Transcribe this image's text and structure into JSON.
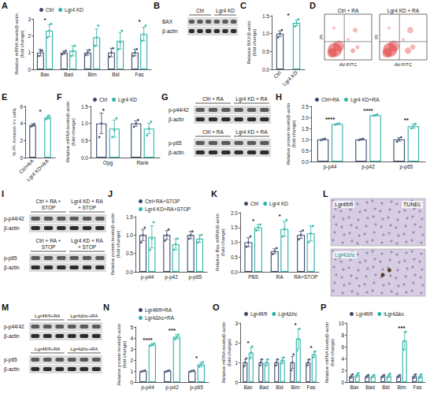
{
  "chart_data": [
    {
      "panel": "A",
      "type": "bar",
      "categories": [
        "Bax",
        "Bad",
        "Bim",
        "Bid",
        "Fas"
      ],
      "ylabel": "Relative mRNA levels/β-actin\n(fold change)",
      "ylim": [
        0,
        3
      ],
      "yticks": [
        0,
        1,
        2,
        3
      ],
      "grid": false,
      "legend": "top-left",
      "series": [
        {
          "name": "Ctrl",
          "color": "#3b4a6b",
          "values": [
            1.0,
            1.0,
            1.0,
            1.0,
            1.0
          ],
          "errors": [
            0.2,
            0.1,
            0.15,
            0.25,
            0.2
          ],
          "points": [
            [
              0.8,
              1.1,
              1.1
            ],
            [
              0.9,
              1.0,
              1.1
            ],
            [
              0.85,
              1.0,
              1.15
            ],
            [
              0.75,
              1.0,
              1.25
            ],
            [
              0.8,
              1.0,
              1.2
            ]
          ]
        },
        {
          "name": "Lgr4 KD",
          "color": "#2bb3a5",
          "values": [
            2.3,
            1.1,
            1.9,
            1.7,
            2.1
          ],
          "errors": [
            0.35,
            0.3,
            0.5,
            0.5,
            0.4
          ],
          "points": [
            [
              1.9,
              2.3,
              2.7
            ],
            [
              0.8,
              1.1,
              1.4
            ],
            [
              1.4,
              1.9,
              2.6
            ],
            [
              1.2,
              1.6,
              2.3
            ],
            [
              1.7,
              2.1,
              2.6
            ]
          ]
        }
      ],
      "annotations": [
        {
          "category": "Bax",
          "text": "*"
        },
        {
          "category": "Fas",
          "text": "*"
        }
      ]
    },
    {
      "panel": "C",
      "type": "bar",
      "categories": [
        "Ctrl",
        "Lgr4 KD"
      ],
      "ylabel": "Relative BAX/β-actin\n(fold change)",
      "ylim": [
        0,
        1.5
      ],
      "yticks": [
        {
          "value": 0,
          "label": "0.0"
        },
        0.5,
        {
          "value": 1,
          "label": "1.0"
        },
        1.5
      ],
      "grid": false,
      "values": [
        1.0,
        1.3
      ],
      "errors": [
        0.08,
        0.08
      ],
      "points": [
        [
          0.9,
          1.0,
          1.1
        ],
        [
          1.2,
          1.3,
          1.4
        ]
      ],
      "colors": [
        "#3b4a6b",
        "#2bb3a5"
      ],
      "annotations": [
        {
          "text": "*"
        }
      ]
    },
    {
      "panel": "E",
      "type": "bar",
      "categories": [
        "Ctrl+RA",
        "Lgr4 KD+RA"
      ],
      "ylabel": "% PI- Annexin V+ cells",
      "ylim": [
        0,
        6
      ],
      "yticks": [
        0,
        2,
        4,
        6
      ],
      "grid": false,
      "values": [
        3.8,
        4.7
      ],
      "errors": [
        0.15,
        0.2
      ],
      "points": [
        [
          3.65,
          3.8,
          3.95
        ],
        [
          4.5,
          4.7,
          4.9
        ]
      ],
      "colors": [
        "#3b4a6b",
        "#2bb3a5"
      ],
      "annotations": [
        {
          "text": "*"
        }
      ]
    },
    {
      "panel": "F",
      "type": "bar",
      "categories": [
        "Opg",
        "Rank"
      ],
      "ylabel": "Relative mRNA levels/β-actin\n(fold change)",
      "ylim": [
        0,
        1.5
      ],
      "yticks": [
        {
          "value": 0,
          "label": "0.0"
        },
        0.5,
        {
          "value": 1,
          "label": "1.0"
        },
        1.5
      ],
      "grid": false,
      "legend": "top-left",
      "series": [
        {
          "name": "Ctrl",
          "color": "#3b4a6b",
          "values": [
            1.0,
            1.0
          ],
          "errors": [
            0.3,
            0.08
          ],
          "points": [
            [
              0.6,
              1.0,
              1.4
            ],
            [
              0.9,
              1.0,
              1.1
            ]
          ]
        },
        {
          "name": "Lgr4 KD",
          "color": "#2bb3a5",
          "values": [
            0.85,
            0.85
          ],
          "errors": [
            0.25,
            0.15
          ],
          "points": [
            [
              0.6,
              0.8,
              1.15
            ],
            [
              0.65,
              0.85,
              1.05
            ]
          ]
        }
      ],
      "annotations": []
    },
    {
      "panel": "H",
      "type": "bar",
      "categories": [
        "p-p44",
        "p-p42",
        "p-p65"
      ],
      "ylabel": "Relative protein levels/β-actin\n(fold change)",
      "ylim": [
        0,
        2.5
      ],
      "yticks": [
        {
          "value": 0,
          "label": "0.0"
        },
        0.5,
        {
          "value": 1,
          "label": "1.0"
        },
        1.5,
        {
          "value": 2,
          "label": "2.0"
        },
        2.5
      ],
      "grid": false,
      "legend": "top-left",
      "series": [
        {
          "name": "Ctrl+RA",
          "color": "#3b4a6b",
          "values": [
            1.0,
            1.0,
            1.0
          ],
          "errors": [
            0.03,
            0.03,
            0.08
          ],
          "points": [
            [
              0.97,
              1.0,
              1.03
            ],
            [
              0.97,
              1.0,
              1.03
            ],
            [
              0.9,
              1.0,
              1.1
            ]
          ]
        },
        {
          "name": "Lgr4 KD+RA",
          "color": "#2bb3a5",
          "values": [
            1.7,
            2.1,
            1.6
          ],
          "errors": [
            0.03,
            0.03,
            0.1
          ],
          "points": [
            [
              1.67,
              1.7,
              1.73
            ],
            [
              2.07,
              2.1,
              2.13
            ],
            [
              1.5,
              1.6,
              1.7
            ]
          ]
        }
      ],
      "annotations": [
        {
          "category": "p-p44",
          "text": "****"
        },
        {
          "category": "p-p42",
          "text": "****"
        },
        {
          "category": "p-p65",
          "text": "**"
        }
      ]
    },
    {
      "panel": "J",
      "type": "bar",
      "categories": [
        "p-p44",
        "p-p42",
        "p-p65"
      ],
      "ylabel": "Relative protein levels/β-actin\n(fold change)",
      "ylim": [
        0,
        1.5
      ],
      "yticks": [
        {
          "value": 0,
          "label": "0.0"
        },
        0.5,
        {
          "value": 1,
          "label": "1.0"
        },
        1.5
      ],
      "grid": false,
      "legend": "top-left",
      "series": [
        {
          "name": "Ctrl+RA+STOP",
          "color": "#3b4a6b",
          "values": [
            1.0,
            1.0,
            1.0
          ],
          "errors": [
            0.15,
            0.12,
            0.1
          ],
          "points": [
            [
              0.8,
              1.0,
              1.2
            ],
            [
              0.85,
              1.0,
              1.15
            ],
            [
              0.9,
              1.0,
              1.1
            ]
          ]
        },
        {
          "name": "Lgr4 KD+RA+STOP",
          "color": "#2bb3a5",
          "values": [
            0.95,
            0.75,
            0.9
          ],
          "errors": [
            0.3,
            0.15,
            0.1
          ],
          "points": [
            [
              0.6,
              0.9,
              1.35
            ],
            [
              0.6,
              0.75,
              0.9
            ],
            [
              0.8,
              0.9,
              1.0
            ]
          ]
        }
      ],
      "annotations": []
    },
    {
      "panel": "K",
      "type": "bar",
      "categories": [
        "PBS",
        "RA",
        "RA+STOP"
      ],
      "ylabel": "Relative Bax mRNA/β-actin\n(fold change)",
      "ylim": [
        0,
        2
      ],
      "yticks": [
        {
          "value": 0,
          "label": "0.0"
        },
        0.5,
        {
          "value": 1,
          "label": "1.0"
        },
        1.5,
        {
          "value": 2,
          "label": "2.0"
        }
      ],
      "grid": false,
      "legend": "top-left",
      "series": [
        {
          "name": "Ctrl",
          "color": "#3b4a6b",
          "values": [
            1.0,
            0.7,
            1.25
          ],
          "errors": [
            0.15,
            0.08,
            0.12
          ],
          "points": [
            [
              0.85,
              1.0,
              1.2
            ],
            [
              0.6,
              0.7,
              0.8
            ],
            [
              1.1,
              1.25,
              1.4
            ]
          ]
        },
        {
          "name": "Lgr4 KD",
          "color": "#2bb3a5",
          "values": [
            1.5,
            1.45,
            1.3
          ],
          "errors": [
            0.1,
            0.25,
            0.25
          ],
          "points": [
            [
              1.4,
              1.5,
              1.6
            ],
            [
              1.2,
              1.45,
              1.75
            ],
            [
              1.0,
              1.3,
              1.55
            ]
          ]
        }
      ],
      "annotations": [
        {
          "category": "PBS",
          "text": "*"
        },
        {
          "category": "RA",
          "text": "*"
        }
      ]
    },
    {
      "panel": "N",
      "type": "bar",
      "categories": [
        "p-p44",
        "p-p42",
        "p-p65"
      ],
      "ylabel": "Relative protein levels/β-actin\n(fold change)",
      "ylim": [
        0,
        5
      ],
      "yticks": [
        0,
        1,
        2,
        3,
        4,
        5
      ],
      "grid": false,
      "legend": "top-left",
      "series": [
        {
          "name": "Lgr4fl/fl+RA",
          "color": "#3b4a6b",
          "values": [
            1.0,
            1.0,
            1.0
          ],
          "errors": [
            0.05,
            0.05,
            0.05
          ],
          "points": [
            [
              0.95,
              1.0,
              1.05
            ],
            [
              0.95,
              1.0,
              1.05
            ],
            [
              0.95,
              1.0,
              1.05
            ]
          ]
        },
        {
          "name": "Lgr4Δhc+RA",
          "color": "#2bb3a5",
          "values": [
            3.4,
            4.1,
            1.6
          ],
          "errors": [
            0.1,
            0.2,
            0.2
          ],
          "points": [
            [
              3.3,
              3.4,
              3.5
            ],
            [
              3.9,
              4.1,
              4.3
            ],
            [
              1.4,
              1.6,
              1.8
            ]
          ]
        }
      ],
      "annotations": [
        {
          "category": "p-p44",
          "text": "****"
        },
        {
          "category": "p-p42",
          "text": "***"
        },
        {
          "category": "p-p65",
          "text": "*"
        }
      ]
    },
    {
      "panel": "O",
      "type": "bar",
      "categories": [
        "Bax",
        "Bad",
        "Bid",
        "Bim",
        "Fas"
      ],
      "ylabel": "Relative mRNA levels/β-actin\n(fold change)",
      "ylim": [
        0,
        3
      ],
      "yticks": [
        0,
        1,
        2,
        3
      ],
      "grid": false,
      "legend": "top-left",
      "series": [
        {
          "name": "Lgr4fl/fl",
          "color": "#3b4a6b",
          "values": [
            1.0,
            1.0,
            1.0,
            1.0,
            1.0
          ],
          "errors": [
            0.15,
            0.15,
            0.15,
            0.3,
            0.15
          ],
          "points": [
            [
              0.8,
              1.0,
              1.2
            ],
            [
              0.85,
              1.0,
              1.15
            ],
            [
              0.85,
              1.0,
              1.15
            ],
            [
              0.6,
              1.0,
              1.4
            ],
            [
              0.85,
              1.0,
              1.15
            ]
          ]
        },
        {
          "name": "Lgr4Δhc",
          "color": "#2bb3a5",
          "values": [
            1.5,
            1.0,
            1.1,
            2.2,
            1.4
          ],
          "errors": [
            0.25,
            0.15,
            0.15,
            0.5,
            0.15
          ],
          "points": [
            [
              1.2,
              1.5,
              1.8
            ],
            [
              0.85,
              1.0,
              1.15
            ],
            [
              0.95,
              1.1,
              1.25
            ],
            [
              1.6,
              2.2,
              2.7
            ],
            [
              1.25,
              1.4,
              1.55
            ]
          ]
        }
      ],
      "annotations": [
        {
          "category": "Bax",
          "text": "*"
        },
        {
          "category": "Bim",
          "text": "*"
        },
        {
          "category": "Fas",
          "text": "*"
        }
      ]
    },
    {
      "panel": "P",
      "type": "bar",
      "categories": [
        "Bax",
        "Bad",
        "Bid",
        "Bim",
        "Fas"
      ],
      "ylabel": "Relative mRNA levels/β-actin\n(fold change)",
      "ylim": [
        0,
        10
      ],
      "yticks": [
        0,
        2,
        4,
        6,
        8,
        10
      ],
      "grid": false,
      "legend": "top-left",
      "series": [
        {
          "name": "Lgr4fl/fl",
          "color": "#3b4a6b",
          "values": [
            1.0,
            1.0,
            1.0,
            1.0,
            1.0
          ],
          "errors": [
            0.3,
            0.2,
            0.2,
            0.2,
            0.3
          ],
          "points": [
            [
              0.7,
              1.0,
              1.3
            ],
            [
              0.8,
              1.0,
              1.2
            ],
            [
              0.8,
              1.0,
              1.2
            ],
            [
              0.8,
              1.0,
              1.2
            ],
            [
              0.7,
              1.0,
              1.3
            ]
          ]
        },
        {
          "name": "iLgr4Δko",
          "color": "#2bb3a5",
          "values": [
            1.2,
            1.0,
            1.1,
            7.0,
            1.0
          ],
          "errors": [
            0.3,
            0.2,
            0.3,
            1.5,
            0.3
          ],
          "points": [
            [
              0.9,
              1.2,
              1.5
            ],
            [
              0.8,
              1.0,
              1.2
            ],
            [
              0.8,
              1.1,
              1.4
            ],
            [
              5.5,
              7.0,
              8.5
            ],
            [
              0.7,
              1.0,
              1.3
            ]
          ]
        }
      ],
      "annotations": [
        {
          "category": "Bim",
          "text": "***"
        }
      ]
    }
  ],
  "blots": [
    {
      "panel": "B",
      "blocks": [
        {
          "groups": [
            "Ctrl",
            "Lgr4 KD"
          ],
          "rows": [
            "BAX",
            "β-actin"
          ]
        }
      ]
    },
    {
      "panel": "G",
      "blocks": [
        {
          "groups": [
            "Ctrl + RA",
            "Lgr4 KD + RA"
          ],
          "rows": [
            "p-p44/42",
            "β-actin"
          ]
        },
        {
          "groups": [
            "Ctrl + RA",
            "Lgr4 KD + RA"
          ],
          "rows": [
            "p-p65",
            "β-actin"
          ]
        }
      ]
    },
    {
      "panel": "I",
      "blocks": [
        {
          "groups": [
            "Ctrl + RA + STOP",
            "Lgr4 KD + RA + STOP"
          ],
          "rows": [
            "p-p44/42",
            "β-actin"
          ]
        },
        {
          "groups": [
            "Ctrl + RA + STOP",
            "Lgr4 KD + RA + STOP"
          ],
          "rows": [
            "p-p65",
            "β-actin"
          ]
        }
      ]
    },
    {
      "panel": "M",
      "blocks": [
        {
          "groups": [
            "Lgr4fl/fl+RA",
            "Lgr4Δhc+RA"
          ],
          "rows": [
            "p-p44/42",
            "β-actin"
          ]
        },
        {
          "groups": [
            "Lgr4fl/fl+RA",
            "Lgr4Δhc+RA"
          ],
          "rows": [
            "p-p65",
            "β-actin"
          ]
        }
      ]
    }
  ],
  "flow": {
    "panel": "D",
    "plots": [
      "Ctrl + RA",
      "Lgr4 KD + RA"
    ],
    "xlabel": "AV-FITC",
    "ylabel": "PI"
  },
  "images": {
    "panel": "L",
    "label": "TUNEL",
    "rows": [
      "Lgr4fl/fl",
      "Lgr4Δhc"
    ]
  }
}
